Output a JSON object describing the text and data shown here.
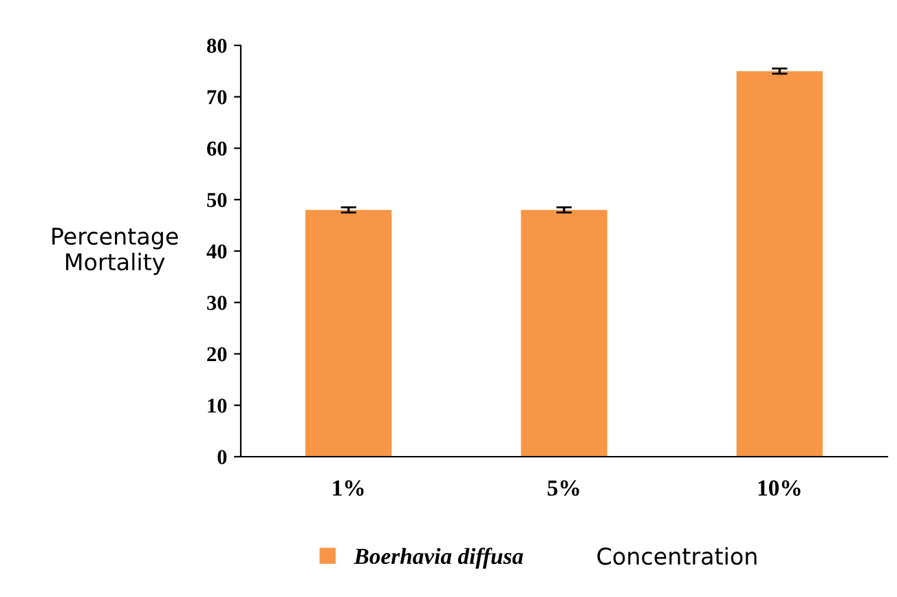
{
  "chart_data": {
    "type": "bar",
    "xlabel": "Concentration",
    "ylabel": "Percentage\nMortality",
    "categories": [
      "1%",
      "5%",
      "10%"
    ],
    "series": [
      {
        "name": "Boerhavia diffusa",
        "color": "#f79646",
        "values": [
          48,
          48,
          75
        ],
        "errors": [
          0.5,
          0.5,
          0.5
        ]
      }
    ],
    "ylim": [
      0,
      80
    ],
    "yticks": [
      0,
      10,
      20,
      30,
      40,
      50,
      60,
      70,
      80
    ],
    "grid": false,
    "legend": "bottom"
  }
}
